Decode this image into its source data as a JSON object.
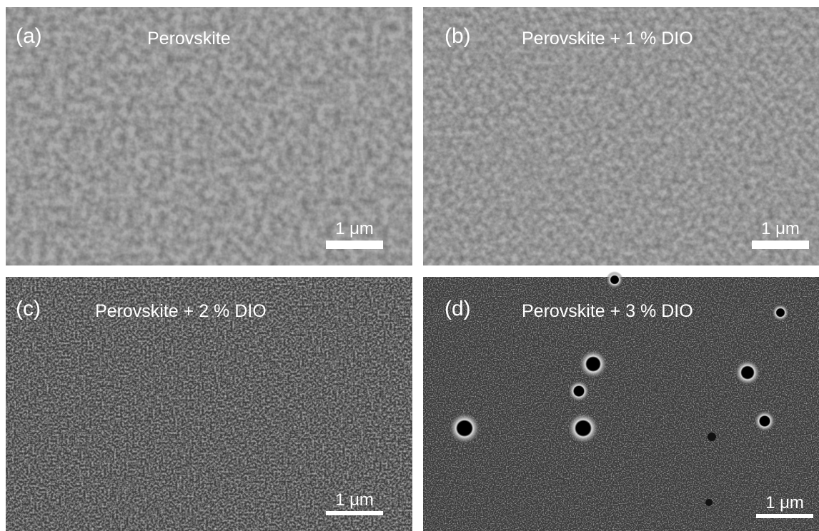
{
  "panels": [
    {
      "label": "(a)",
      "title": "Perovskite",
      "scale_bar": "1 μm"
    },
    {
      "label": "(b)",
      "title": "Perovskite + 1 % DIO",
      "scale_bar": "1 μm"
    },
    {
      "label": "(c)",
      "title": "Perovskite + 2 % DIO",
      "scale_bar": "1 μm"
    },
    {
      "label": "(d)",
      "title": "Perovskite + 3 % DIO",
      "scale_bar": "1 μm"
    }
  ]
}
